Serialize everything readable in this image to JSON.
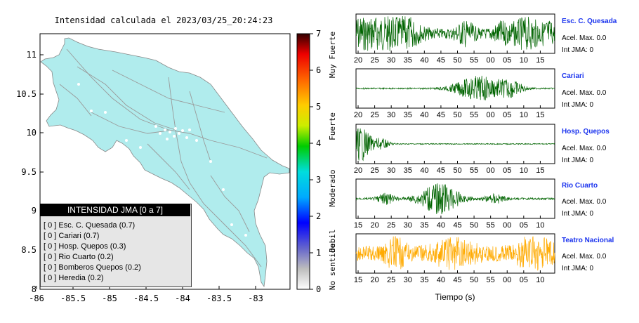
{
  "map": {
    "title": "Intensidad calculada el 2023/03/25_20:24:23",
    "y_ticks": [
      "11",
      "10.5",
      "10",
      "9.5",
      "9",
      "8.5",
      "8"
    ],
    "x_ticks": [
      "-86",
      "-85.5",
      "-85",
      "-84.5",
      "-84",
      "-83.5",
      "-83"
    ]
  },
  "colorbar": {
    "ticks": [
      "7",
      "6",
      "5",
      "4",
      "3",
      "2",
      "1",
      "0"
    ],
    "labels": [
      "Muy Fuerte",
      "Fuerte",
      "Moderado",
      "Debil",
      "No sentido"
    ]
  },
  "legend": {
    "header": "INTENSIDAD JMA [0 a 7]",
    "rows": [
      "[ 0 ]  Esc. C. Quesada (0.7)",
      "[ 0 ]  Cariari (0.7)",
      "[ 0 ]  Hosp. Quepos (0.3)",
      "[ 0 ]  Rio Cuarto (0.2)",
      "[ 0 ]  Bomberos Quepos (0.2)",
      "[ 0 ]  Heredia (0.2)"
    ]
  },
  "stations": [
    {
      "name": "Esc. C. Quesada",
      "accel": "Acel. Max. 0.0",
      "jma": "Int JMA: 0",
      "color": "#006400",
      "ticks": [
        "20",
        "25",
        "30",
        "35",
        "40",
        "45",
        "50",
        "55",
        "00",
        "05",
        "10",
        "15"
      ]
    },
    {
      "name": "Cariari",
      "accel": "Acel. Max. 0.0",
      "jma": "Int JMA: 0",
      "color": "#006400",
      "ticks": [
        "20",
        "25",
        "30",
        "35",
        "40",
        "45",
        "50",
        "55",
        "00",
        "05",
        "10",
        "15"
      ]
    },
    {
      "name": "Hosp. Quepos",
      "accel": "Acel. Max. 0.0",
      "jma": "Int JMA: 0",
      "color": "#006400",
      "ticks": [
        "20",
        "25",
        "30",
        "35",
        "40",
        "45",
        "50",
        "55",
        "00",
        "05",
        "10",
        "15"
      ]
    },
    {
      "name": "Rio Cuarto",
      "accel": "Acel. Max. 0.0",
      "jma": "Int JMA: 0",
      "color": "#006400",
      "ticks": [
        "15",
        "20",
        "25",
        "30",
        "35",
        "40",
        "45",
        "50",
        "55",
        "00",
        "05",
        "10"
      ]
    },
    {
      "name": "Teatro Nacional",
      "accel": "Acel. Max. 0.0",
      "jma": "Int JMA: 0",
      "color": "#ffaa00",
      "ticks": [
        "15",
        "20",
        "25",
        "30",
        "35",
        "40",
        "45",
        "50",
        "55",
        "00",
        "05",
        "10"
      ]
    }
  ],
  "x_axis_label": "Tiempo (s)"
}
